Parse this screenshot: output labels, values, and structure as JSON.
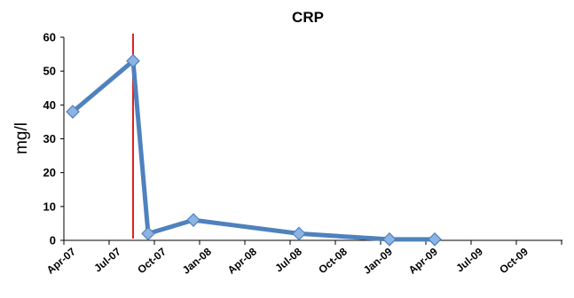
{
  "chart_data": {
    "type": "line",
    "title": "CRP",
    "xlabel": "",
    "ylabel": "mg/l",
    "ylim": [
      0,
      60
    ],
    "yticks": [
      0,
      10,
      20,
      30,
      40,
      50,
      60
    ],
    "x_tick_labels": [
      "Apr-07",
      "Jul-07",
      "Oct-07",
      "Jan-08",
      "Apr-08",
      "Jul-08",
      "Oct-08",
      "Jan-09",
      "Apr-09",
      "Jul-09",
      "Oct-09"
    ],
    "series": [
      {
        "x": [
          "2007-04",
          "2007-08",
          "2007-09",
          "2007-12",
          "2008-07",
          "2009-01",
          "2009-04"
        ],
        "values": [
          38,
          53,
          2,
          6,
          2,
          0.3,
          0.3
        ]
      }
    ],
    "reference_line": {
      "x": "2007-08",
      "color": "#e02020"
    },
    "line_color": "#4f81bd",
    "marker_color": "#8db3e2",
    "grid": false
  }
}
